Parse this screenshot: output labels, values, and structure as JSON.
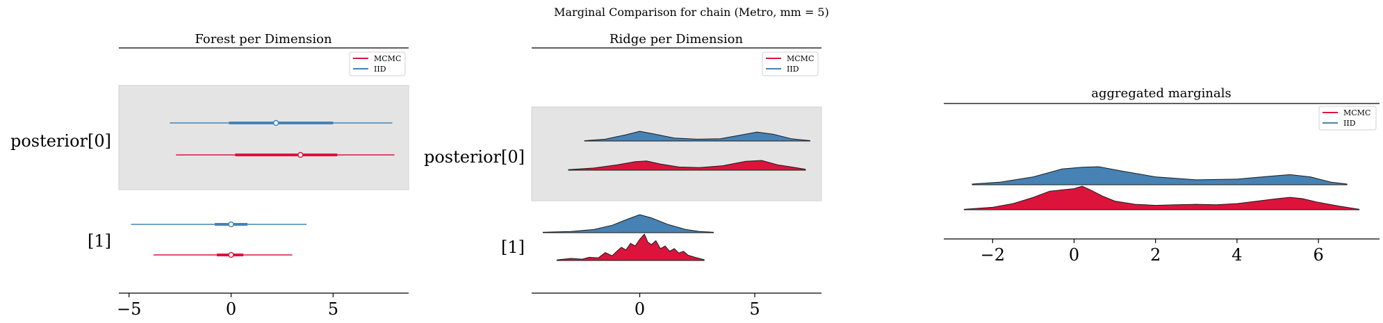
{
  "figure": {
    "suptitle": "Marginal Comparison for chain (Metro, mm = 5)"
  },
  "colors": {
    "mcmc": "#dc143c",
    "iid": "#4682b4",
    "shade": "#e4e4e4"
  },
  "legend": {
    "entries": [
      "MCMC",
      "IID"
    ]
  },
  "chart_data": [
    {
      "type": "forest",
      "title": "Forest per Dimension",
      "y_labels": [
        "posterior[0]",
        "[1]"
      ],
      "x_ticks": [
        -5,
        0,
        5
      ],
      "xlim": [
        -5.5,
        8.7
      ],
      "legend": [
        "MCMC",
        "IID"
      ],
      "legend_position": "top-right",
      "series": [
        {
          "name": "IID",
          "rows": [
            {
              "label": "posterior[0]",
              "median": 2.2,
              "hdi_inner": [
                -0.1,
                5.0
              ],
              "hdi_outer": [
                -3.0,
                7.9
              ]
            },
            {
              "label": "[1]",
              "median": 0.0,
              "hdi_inner": [
                -0.8,
                0.8
              ],
              "hdi_outer": [
                -4.9,
                3.7
              ]
            }
          ]
        },
        {
          "name": "MCMC",
          "rows": [
            {
              "label": "posterior[0]",
              "median": 3.4,
              "hdi_inner": [
                0.2,
                5.2
              ],
              "hdi_outer": [
                -2.7,
                8.0
              ]
            },
            {
              "label": "[1]",
              "median": 0.0,
              "hdi_inner": [
                -0.7,
                0.6
              ],
              "hdi_outer": [
                -3.8,
                3.0
              ]
            }
          ]
        }
      ]
    },
    {
      "type": "ridge",
      "title": "Ridge per Dimension",
      "y_labels": [
        "posterior[0]",
        "[1]"
      ],
      "x_ticks": [
        0,
        5
      ],
      "xlim": [
        -4.7,
        7.9
      ],
      "legend": [
        "MCMC",
        "IID"
      ],
      "legend_position": "top-right",
      "series": [
        {
          "name": "IID",
          "rows": [
            {
              "label": "posterior[0]",
              "x": [
                -2.4,
                -1.5,
                -0.6,
                0.0,
                0.6,
                1.5,
                2.5,
                3.5,
                4.4,
                5.1,
                5.8,
                6.6,
                7.4
              ],
              "density": [
                0.02,
                0.12,
                0.42,
                0.65,
                0.48,
                0.2,
                0.12,
                0.15,
                0.4,
                0.6,
                0.45,
                0.15,
                0.03
              ]
            },
            {
              "label": "[1]",
              "x": [
                -4.2,
                -3.0,
                -2.0,
                -1.2,
                -0.5,
                0.0,
                0.5,
                1.2,
                2.0,
                2.6,
                3.2
              ],
              "density": [
                0.02,
                0.06,
                0.15,
                0.35,
                0.65,
                0.85,
                0.7,
                0.4,
                0.15,
                0.06,
                0.02
              ]
            }
          ]
        },
        {
          "name": "MCMC",
          "rows": [
            {
              "label": "posterior[0]",
              "x": [
                -3.1,
                -2.0,
                -1.0,
                -0.2,
                0.3,
                0.9,
                1.7,
                2.6,
                3.6,
                4.6,
                5.3,
                6.0,
                6.6,
                7.2
              ],
              "density": [
                0.03,
                0.12,
                0.3,
                0.48,
                0.52,
                0.35,
                0.18,
                0.15,
                0.25,
                0.5,
                0.55,
                0.3,
                0.18,
                0.05
              ]
            },
            {
              "label": "[1]",
              "x": [
                -3.6,
                -3.0,
                -2.5,
                -2.2,
                -1.8,
                -1.5,
                -1.2,
                -1.0,
                -0.8,
                -0.6,
                -0.4,
                -0.2,
                0.0,
                0.2,
                0.35,
                0.5,
                0.7,
                0.9,
                1.1,
                1.3,
                1.5,
                1.7,
                1.9,
                2.1,
                2.4,
                2.8
              ],
              "density": [
                0.02,
                0.08,
                0.05,
                0.12,
                0.1,
                0.3,
                0.18,
                0.35,
                0.5,
                0.4,
                0.65,
                0.55,
                0.8,
                1.0,
                0.7,
                0.6,
                0.75,
                0.45,
                0.55,
                0.35,
                0.45,
                0.28,
                0.35,
                0.2,
                0.12,
                0.03
              ]
            }
          ]
        }
      ]
    },
    {
      "type": "ridge",
      "title": "aggregated marginals",
      "x_ticks": [
        -2,
        0,
        2,
        4,
        6
      ],
      "xlim": [
        -3.2,
        7.5
      ],
      "legend": [
        "MCMC",
        "IID"
      ],
      "legend_position": "top-right",
      "series": [
        {
          "name": "IID",
          "x": [
            -2.5,
            -1.8,
            -1.0,
            -0.3,
            0.2,
            0.6,
            1.2,
            2.0,
            3.0,
            4.0,
            4.8,
            5.3,
            5.8,
            6.3,
            6.7
          ],
          "density": [
            0.03,
            0.12,
            0.35,
            0.7,
            0.78,
            0.8,
            0.6,
            0.35,
            0.22,
            0.25,
            0.38,
            0.45,
            0.35,
            0.12,
            0.03
          ]
        },
        {
          "name": "MCMC",
          "x": [
            -2.7,
            -2.0,
            -1.5,
            -1.0,
            -0.6,
            -0.3,
            0.0,
            0.2,
            0.4,
            0.7,
            1.0,
            1.5,
            2.0,
            2.5,
            3.0,
            3.5,
            4.0,
            4.5,
            5.0,
            5.3,
            5.6,
            6.0,
            6.5,
            7.0
          ],
          "density": [
            0.02,
            0.1,
            0.25,
            0.5,
            0.75,
            0.8,
            0.85,
            0.95,
            0.8,
            0.55,
            0.35,
            0.22,
            0.18,
            0.2,
            0.22,
            0.2,
            0.25,
            0.35,
            0.45,
            0.5,
            0.45,
            0.3,
            0.15,
            0.02
          ]
        }
      ]
    }
  ]
}
